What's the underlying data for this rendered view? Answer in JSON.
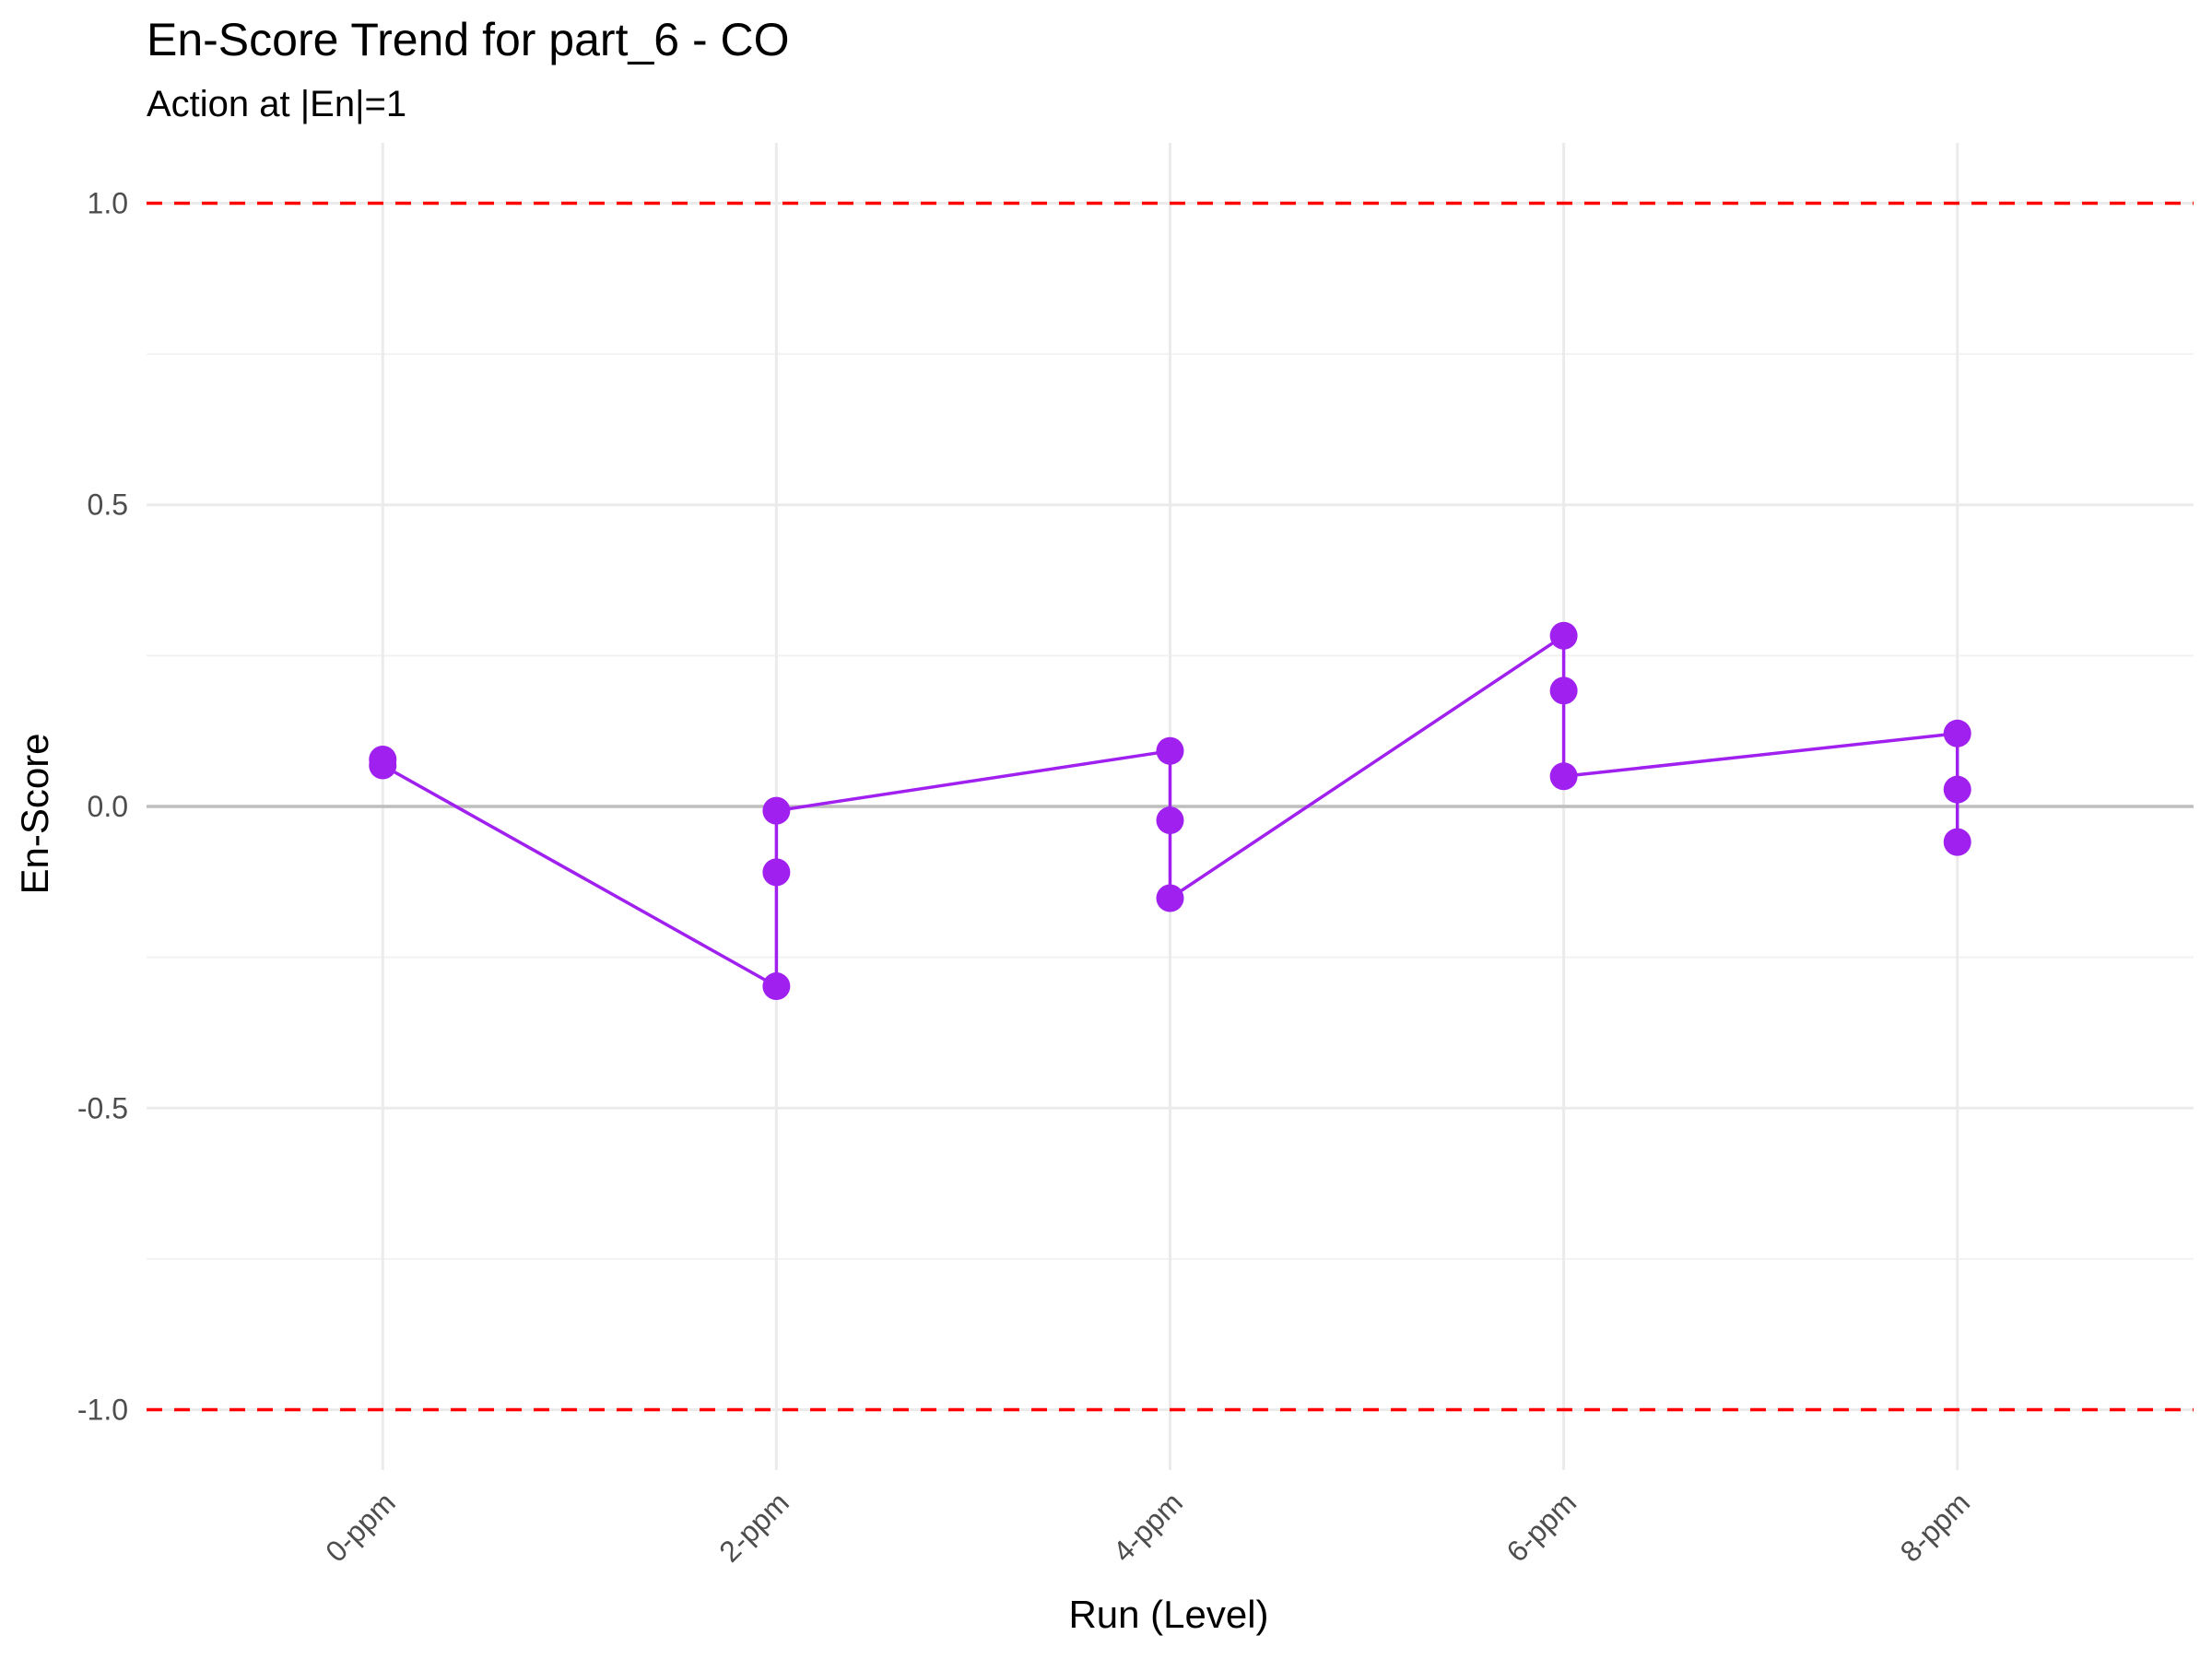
{
  "chart_data": {
    "type": "line",
    "title": "En-Score Trend for part_6 - CO",
    "subtitle": "Action at |En|=1",
    "xlabel": "Run (Level)",
    "ylabel": "En-Score",
    "categories": [
      "0-ppm",
      "2-ppm",
      "4-ppm",
      "6-ppm",
      "8-ppm"
    ],
    "ylim": [
      -1.1,
      1.1
    ],
    "yticks": [
      -1.0,
      -0.5,
      0.0,
      0.5,
      1.0
    ],
    "ytick_labels": [
      "-1.0",
      "-0.5",
      "0.0",
      "0.5",
      "1.0"
    ],
    "points": [
      {
        "x": "0-ppm",
        "y": 0.078
      },
      {
        "x": "0-ppm",
        "y": 0.068
      },
      {
        "x": "2-ppm",
        "y": -0.298
      },
      {
        "x": "2-ppm",
        "y": -0.109
      },
      {
        "x": "2-ppm",
        "y": -0.007
      },
      {
        "x": "4-ppm",
        "y": 0.092
      },
      {
        "x": "4-ppm",
        "y": -0.023
      },
      {
        "x": "4-ppm",
        "y": -0.152
      },
      {
        "x": "6-ppm",
        "y": 0.283
      },
      {
        "x": "6-ppm",
        "y": 0.192
      },
      {
        "x": "6-ppm",
        "y": 0.05
      },
      {
        "x": "8-ppm",
        "y": 0.121
      },
      {
        "x": "8-ppm",
        "y": 0.028
      },
      {
        "x": "8-ppm",
        "y": -0.059
      }
    ],
    "reference_lines": [
      {
        "y": 1.0,
        "style": "dashed",
        "color": "#ff0000"
      },
      {
        "y": -1.0,
        "style": "dashed",
        "color": "#ff0000"
      },
      {
        "y": 0.0,
        "style": "solid",
        "color": "#bebebe"
      }
    ],
    "series_color": "#a020f0",
    "grid": true,
    "legend": "none"
  }
}
